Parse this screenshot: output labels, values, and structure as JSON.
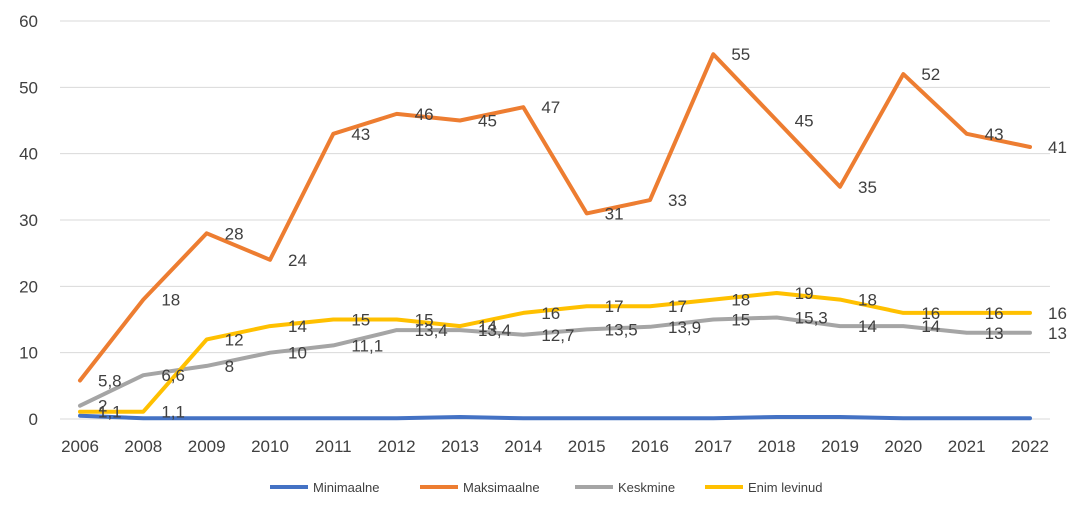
{
  "chart_data": {
    "type": "line",
    "title": "",
    "xlabel": "",
    "ylabel": "",
    "categories": [
      "2006",
      "2008",
      "2009",
      "2010",
      "2011",
      "2012",
      "2013",
      "2014",
      "2015",
      "2016",
      "2017",
      "2018",
      "2019",
      "2020",
      "2021",
      "2022"
    ],
    "ylim": [
      0,
      60
    ],
    "yticks": [
      0,
      10,
      20,
      30,
      40,
      50,
      60
    ],
    "grid": true,
    "legend_position": "bottom",
    "series": [
      {
        "name": "Minimaalne",
        "color": "#4472C4",
        "values": [
          0.5,
          0.1,
          0.1,
          0.1,
          0.1,
          0.1,
          0.3,
          0.1,
          0.1,
          0.1,
          0.1,
          0.3,
          0.3,
          0.1,
          0.1,
          0.1
        ],
        "labels": []
      },
      {
        "name": "Maksimaalne",
        "color": "#ED7D31",
        "values": [
          5.8,
          18,
          28,
          24,
          43,
          46,
          45,
          47,
          31,
          33,
          55,
          45,
          35,
          52,
          43,
          41
        ],
        "labels": [
          "5,8",
          "18",
          "28",
          "24",
          "43",
          "46",
          "45",
          "47",
          "31",
          "33",
          "55",
          "45",
          "35",
          "52",
          "43",
          "41"
        ]
      },
      {
        "name": "Keskmine",
        "color": "#A5A5A5",
        "values": [
          2,
          6.6,
          8,
          10,
          11.1,
          13.4,
          13.4,
          12.7,
          13.5,
          13.9,
          15,
          15.3,
          14,
          14,
          13,
          13
        ],
        "labels": [
          "2",
          "6,6",
          "8",
          "10",
          "11,1",
          "13,4",
          "13,4",
          "12,7",
          "13,5",
          "13,9",
          "15",
          "15,3",
          "14",
          "14",
          "13",
          "13"
        ]
      },
      {
        "name": "Enim levinud",
        "color": "#FFC000",
        "values": [
          1.1,
          1.1,
          12,
          14,
          15,
          15,
          14,
          16,
          17,
          17,
          18,
          19,
          18,
          16,
          16,
          16
        ],
        "labels": [
          "1,1",
          "1,1",
          "12",
          "14",
          "15",
          "15",
          "14",
          "16",
          "17",
          "17",
          "18",
          "19",
          "18",
          "16",
          "16",
          "16"
        ]
      }
    ]
  }
}
